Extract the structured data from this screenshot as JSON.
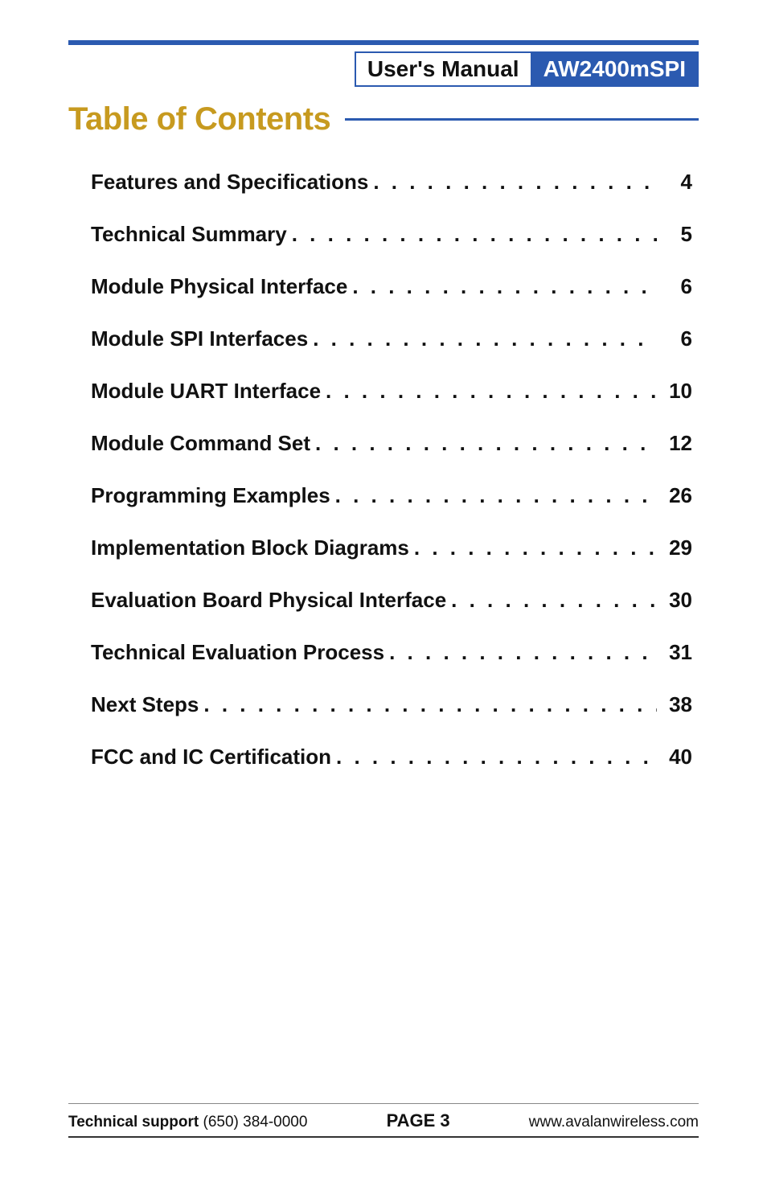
{
  "header": {
    "tab_left": "User's Manual",
    "tab_right": "AW2400mSPI",
    "rule_color": "#2b5ab0"
  },
  "title": {
    "text": "Table of Contents",
    "color": "#c79a1f",
    "rule_color": "#2b5ab0"
  },
  "toc": [
    {
      "label": "Features and Specifications",
      "page": "4"
    },
    {
      "label": "Technical Summary",
      "page": "5"
    },
    {
      "label": "Module Physical Interface",
      "page": "6"
    },
    {
      "label": "Module SPI Interfaces",
      "page": "6"
    },
    {
      "label": "Module UART Interface",
      "page": "10"
    },
    {
      "label": "Module Command Set",
      "page": "12"
    },
    {
      "label": "Programming Examples",
      "page": "26"
    },
    {
      "label": "Implementation Block Diagrams",
      "page": "29"
    },
    {
      "label": "Evaluation Board Physical Interface",
      "page": "30"
    },
    {
      "label": "Technical Evaluation Process",
      "page": "31"
    },
    {
      "label": "Next Steps",
      "page": "38"
    },
    {
      "label": "FCC and IC Certification",
      "page": "40"
    }
  ],
  "footer": {
    "support_label": "Technical support",
    "support_phone": "(650) 384-0000",
    "page_label": "PAGE 3",
    "url": "www.avalanwireless.com"
  },
  "colors": {
    "accent": "#2b5ab0",
    "title": "#c79a1f",
    "text": "#111111",
    "background": "#ffffff"
  },
  "typography": {
    "title_fontsize": 40,
    "toc_fontsize": 26,
    "footer_fontsize": 19,
    "tab_fontsize": 28
  }
}
